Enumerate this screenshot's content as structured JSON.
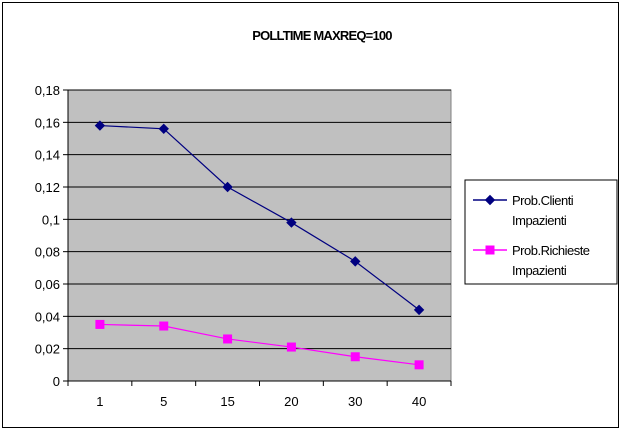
{
  "chart_data": {
    "type": "line",
    "title": "POLLTIME MAXREQ=100",
    "xlabel": "",
    "ylabel": "",
    "categories": [
      "1",
      "5",
      "15",
      "20",
      "30",
      "40"
    ],
    "ylim": [
      0,
      0.18
    ],
    "yticks": [
      "0",
      "0,02",
      "0,04",
      "0,06",
      "0,08",
      "0,1",
      "0,12",
      "0,14",
      "0,16",
      "0,18"
    ],
    "grid": true,
    "legend_position": "right",
    "plot_background": "#c0c0c0",
    "series": [
      {
        "name": "Prob.Clienti Impazienti",
        "legend_lines": [
          "Prob.Clienti",
          "Impazienti"
        ],
        "values": [
          0.158,
          0.156,
          0.12,
          0.098,
          0.074,
          0.044
        ],
        "color": "#000080",
        "marker": "diamond"
      },
      {
        "name": "Prob.Richieste Impazienti",
        "legend_lines": [
          "Prob.Richieste",
          "Impazienti"
        ],
        "values": [
          0.035,
          0.034,
          0.026,
          0.021,
          0.015,
          0.01
        ],
        "color": "#ff00ff",
        "marker": "square"
      }
    ]
  }
}
